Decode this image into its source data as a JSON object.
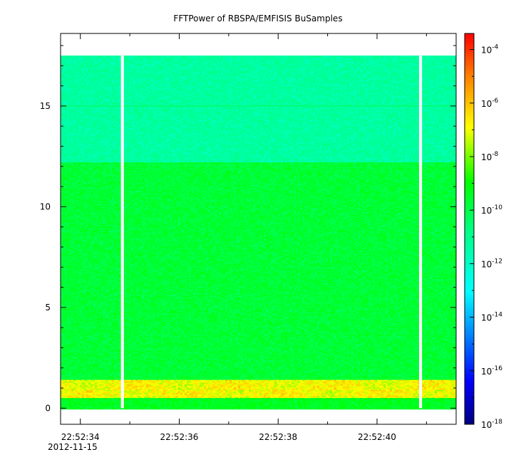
{
  "chart_data": {
    "type": "heatmap",
    "title": "FFTPower of RBSPA/EMFISIS  BuSamples",
    "xlabel": "",
    "ylabel": "",
    "x_tick_labels": [
      "22:52:34",
      "22:52:36",
      "22:52:38",
      "22:52:40"
    ],
    "x_tick_values_s": [
      0,
      2,
      4,
      6
    ],
    "x_date_label": "2012-11-15",
    "xlim_s": [
      -0.4,
      7.6
    ],
    "y_ticks": [
      0,
      5,
      10,
      15
    ],
    "ylim": [
      -0.8,
      18.6
    ],
    "y_data_max": 17.5,
    "colorbar": {
      "scale": "log",
      "range_exponent": [
        -18,
        -3.4
      ],
      "tick_base": "10",
      "tick_exponents": [
        "-4",
        "-6",
        "-8",
        "-10",
        "-12",
        "-14",
        "-16",
        "-18"
      ],
      "tick_exponent_values": [
        -4,
        -6,
        -8,
        -10,
        -12,
        -14,
        -16,
        -18
      ]
    },
    "bands": [
      {
        "y_from": 12.2,
        "y_to": 17.5,
        "log_power": -11.3
      },
      {
        "y_from": 1.4,
        "y_to": 12.2,
        "log_power": -9.7
      },
      {
        "y_from": 0.5,
        "y_to": 1.4,
        "log_power": -6.9
      },
      {
        "y_from": 0.0,
        "y_to": 0.5,
        "log_power": -9.4
      }
    ],
    "line_feature": {
      "y": 15.0,
      "log_power": -10.6
    },
    "data_gaps_s": [
      [
        0.82,
        0.88
      ],
      [
        6.85,
        6.91
      ]
    ],
    "grid": false
  }
}
